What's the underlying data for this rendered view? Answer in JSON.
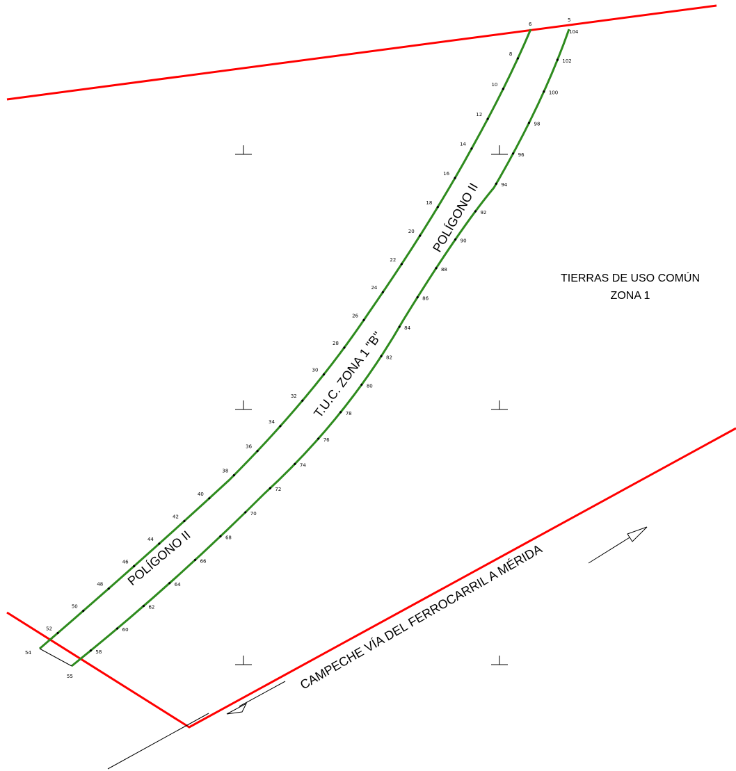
{
  "colors": {
    "boundary": "#ff0000",
    "strip": "#2e8b1e",
    "vertex": "#000000",
    "background": "#ffffff"
  },
  "labels": {
    "area_line1": "TIERRAS DE USO COMÚN",
    "area_line2": "ZONA 1",
    "strip_name": "T.U.C. ZONA 1 \"B\"",
    "polygon_upper": "POLÍGONO II",
    "polygon_lower": "POLÍGONO II",
    "railway": "CAMPECHE VÍA DEL FERROCARRIL A MÉRIDA"
  },
  "vertices": {
    "top_left_corner": "6",
    "top_right_corner": "5",
    "top_right_corner_b": "104",
    "bottom_left_corner": "54",
    "bottom_right_corner": "55",
    "left_edge": [
      "8",
      "10",
      "12",
      "14",
      "16",
      "18",
      "20",
      "22",
      "24",
      "26",
      "28",
      "30",
      "32",
      "34",
      "36",
      "38",
      "40",
      "42",
      "44",
      "46",
      "48",
      "50",
      "52"
    ],
    "right_edge": [
      "102",
      "100",
      "98",
      "96",
      "94",
      "92",
      "90",
      "88",
      "86",
      "84",
      "82",
      "80",
      "78",
      "76",
      "74",
      "72",
      "70",
      "68",
      "66",
      "64",
      "62",
      "60",
      "58"
    ]
  },
  "symbols": {
    "grid_mark_icon": "inverted-t-icon",
    "direction_arrow_icon": "arrow-icon"
  }
}
